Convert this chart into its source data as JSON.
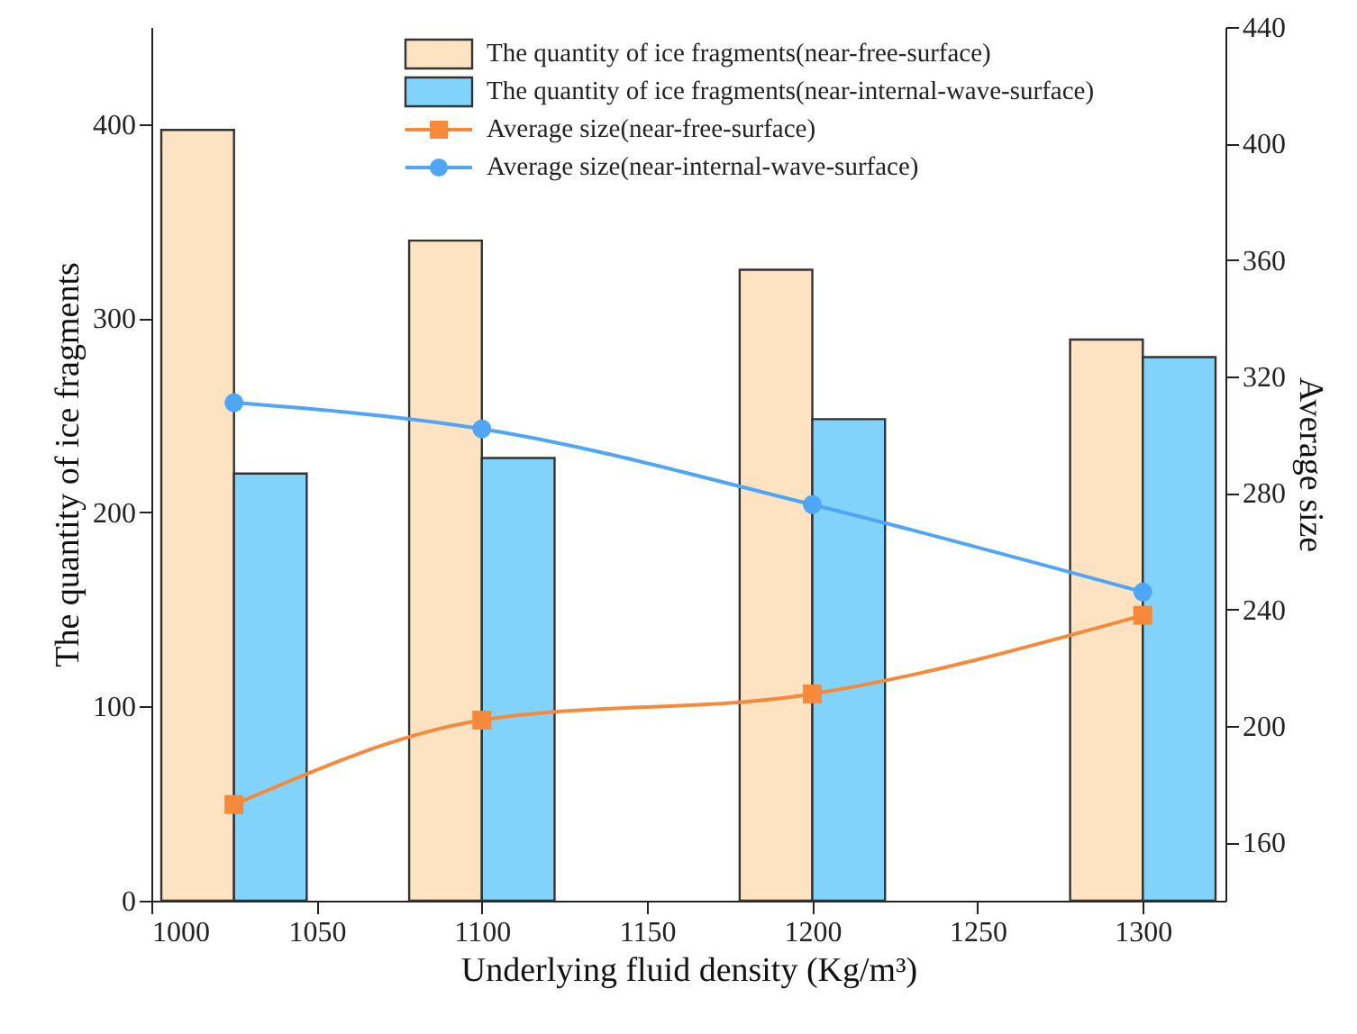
{
  "chart_data": {
    "type": "bar",
    "xlabel": "Underlying fluid density (Kg/m³)",
    "ylabel": "The quantity of ice fragments",
    "y2label": "Average size",
    "x": [
      1025,
      1100,
      1200,
      1300
    ],
    "xlim": [
      1000,
      1325
    ],
    "xticks": [
      1000,
      1050,
      1100,
      1150,
      1200,
      1250,
      1300
    ],
    "ylim": [
      0,
      450
    ],
    "yticks": [
      0,
      100,
      200,
      300,
      400
    ],
    "y2lim": [
      140,
      440
    ],
    "y2ticks": [
      160,
      200,
      240,
      280,
      320,
      360,
      400,
      440
    ],
    "legend": "top right",
    "grid": false,
    "series": [
      {
        "name": "The quantity of ice fragments(near-free-surface)",
        "color": "#fde3c1",
        "values": [
          397,
          340,
          325,
          289
        ]
      },
      {
        "name": "The quantity of ice fragments(near-internal-wave-surface)",
        "color": "#82d3fb",
        "values": [
          220,
          228,
          248,
          280
        ]
      },
      {
        "name": "Average size(near-free-surface)",
        "type": "line",
        "axis": "y2",
        "marker": "square",
        "color": "#f7893a",
        "values": [
          173,
          202,
          211,
          238
        ]
      },
      {
        "name": "Average size(near-internal-wave-surface)",
        "type": "line",
        "axis": "y2",
        "marker": "circle",
        "color": "#4fa6f7",
        "values": [
          311,
          302,
          276,
          246
        ]
      }
    ]
  }
}
